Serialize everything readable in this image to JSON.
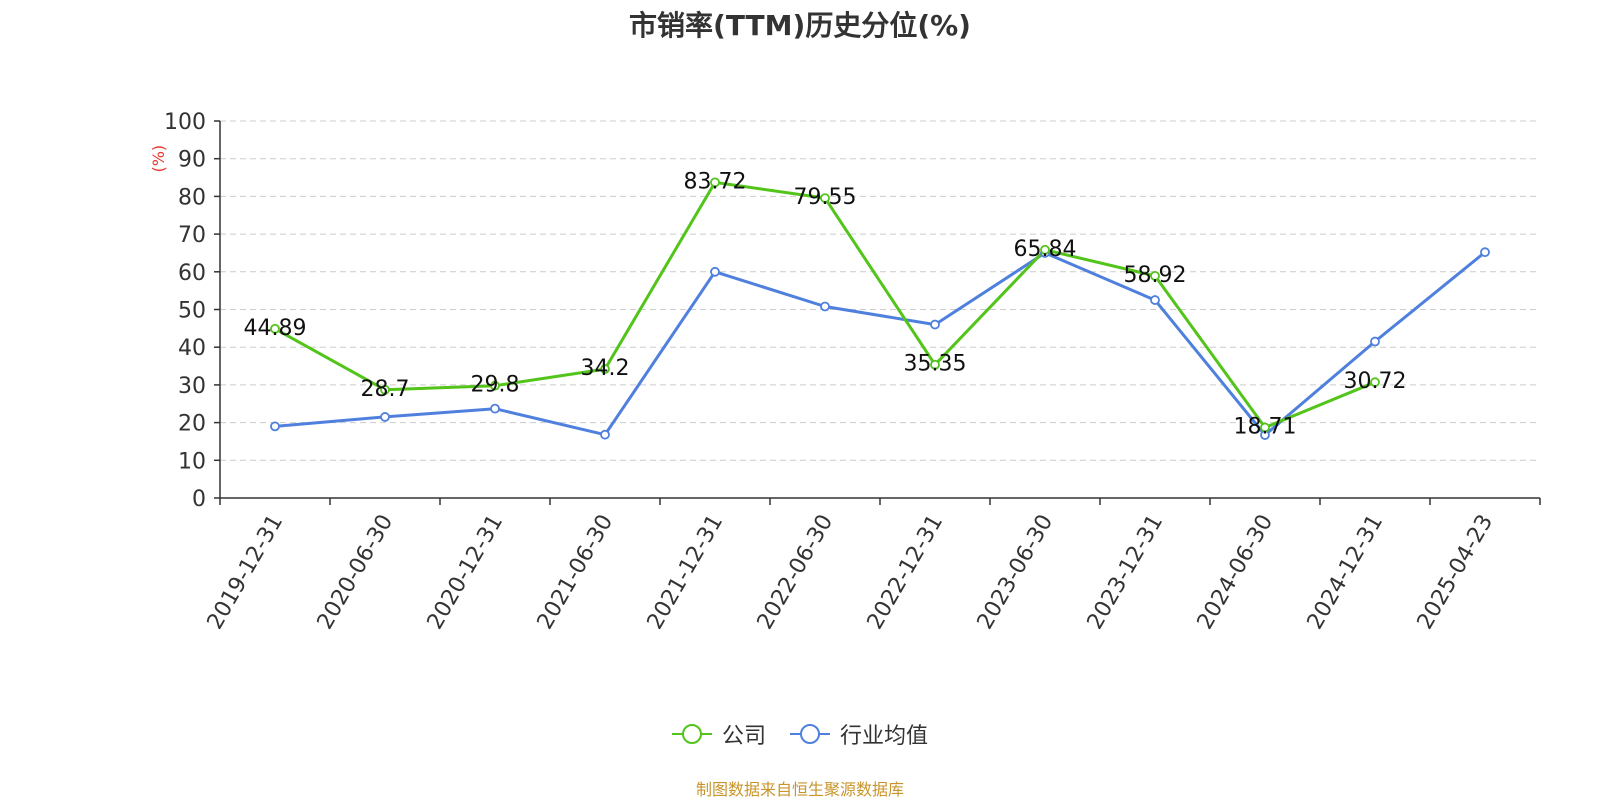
{
  "chart_data": {
    "type": "line",
    "title": "市销率(TTM)历史分位(%)",
    "ylabel": "(%)",
    "xlabel": "",
    "ylim": [
      0,
      100
    ],
    "yticks": [
      0,
      10,
      20,
      30,
      40,
      50,
      60,
      70,
      80,
      90,
      100
    ],
    "grid": true,
    "legend_position": "bottom",
    "categories": [
      "2019-12-31",
      "2020-06-30",
      "2020-12-31",
      "2021-06-30",
      "2021-12-31",
      "2022-06-30",
      "2022-12-31",
      "2023-06-30",
      "2023-12-31",
      "2024-06-30",
      "2024-12-31",
      "2025-04-23"
    ],
    "series": [
      {
        "name": "公司",
        "color": "#52c41a",
        "values": [
          44.89,
          28.7,
          29.8,
          34.2,
          83.72,
          79.55,
          35.35,
          65.84,
          58.92,
          18.71,
          30.72,
          null
        ],
        "labels": [
          "44.89",
          "28.7",
          "29.8",
          "34.2",
          "83.72",
          "79.55",
          "35.35",
          "65.84",
          "58.92",
          "18.71",
          "30.72",
          ""
        ]
      },
      {
        "name": "行业均值",
        "color": "#4f80dd",
        "values": [
          19.0,
          21.5,
          23.7,
          16.8,
          60.0,
          50.8,
          46.0,
          65.0,
          52.5,
          16.7,
          41.5,
          65.2
        ]
      }
    ]
  },
  "source_note": "制图数据来自恒生聚源数据库"
}
